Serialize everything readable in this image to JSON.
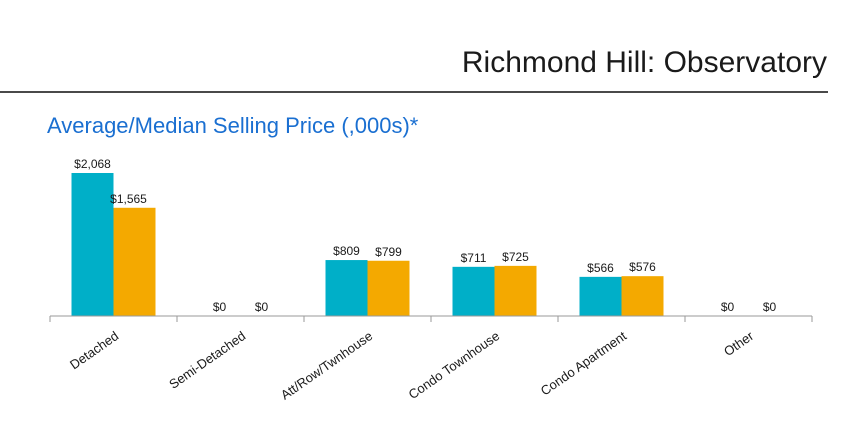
{
  "header": {
    "title": "Richmond Hill: Observatory"
  },
  "chart_data": {
    "type": "bar",
    "title": "Average/Median Selling Price (,000s)*",
    "xlabel": "",
    "ylabel": "",
    "ylim": [
      0,
      2068
    ],
    "categories": [
      "Detached",
      "Semi-Detached",
      "Att/Row/Twnhouse",
      "Condo Townhouse",
      "Condo Apartment",
      "Other"
    ],
    "series": [
      {
        "name": "Average",
        "color": "#00afc8",
        "values": [
          2068,
          0,
          809,
          711,
          566,
          0
        ],
        "labels": [
          "$2,068",
          "$0",
          "$809",
          "$711",
          "$566",
          "$0"
        ]
      },
      {
        "name": "Median",
        "color": "#f4a900",
        "values": [
          1565,
          0,
          799,
          725,
          576,
          0
        ],
        "labels": [
          "$1,565",
          "$0",
          "$799",
          "$725",
          "$576",
          "$0"
        ]
      }
    ]
  }
}
